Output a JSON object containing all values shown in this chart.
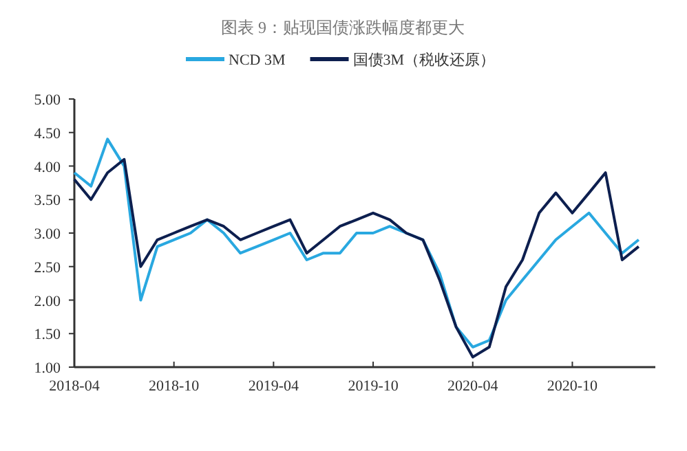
{
  "chart_data": {
    "type": "line",
    "title": "图表 9：贴现国债涨跌幅度都更大",
    "legend": "top",
    "grid": false,
    "xlim": [
      "2018-04",
      "2021-03"
    ],
    "xticks": [
      "2018-04",
      "2018-10",
      "2019-04",
      "2019-10",
      "2020-04",
      "2020-10"
    ],
    "ylim": [
      1,
      5
    ],
    "yticks": [
      {
        "value": 1,
        "label": "1.00"
      },
      {
        "value": 1.5,
        "label": "1.50"
      },
      {
        "value": 2,
        "label": "2.00"
      },
      {
        "value": 2.5,
        "label": "2.50"
      },
      {
        "value": 3,
        "label": "3.00"
      },
      {
        "value": 3.5,
        "label": "3.50"
      },
      {
        "value": 4,
        "label": "4.00"
      },
      {
        "value": 4.5,
        "label": "4.50"
      },
      {
        "value": 5,
        "label": "5.00"
      }
    ],
    "x": [
      "2018-04",
      "2018-05",
      "2018-06",
      "2018-07",
      "2018-08",
      "2018-09",
      "2018-10",
      "2018-11",
      "2018-12",
      "2019-01",
      "2019-02",
      "2019-03",
      "2019-04",
      "2019-05",
      "2019-06",
      "2019-07",
      "2019-08",
      "2019-09",
      "2019-10",
      "2019-11",
      "2019-12",
      "2020-01",
      "2020-02",
      "2020-03",
      "2020-04",
      "2020-05",
      "2020-06",
      "2020-07",
      "2020-08",
      "2020-09",
      "2020-10",
      "2020-11",
      "2020-12",
      "2021-01",
      "2021-02"
    ],
    "series": [
      {
        "name": "NCD 3M",
        "color": "#29a8e0",
        "values": [
          3.9,
          3.7,
          4.4,
          4.0,
          2.0,
          2.8,
          2.9,
          3.0,
          3.2,
          3.0,
          2.7,
          2.8,
          2.9,
          3.0,
          2.6,
          2.7,
          2.7,
          3.0,
          3.0,
          3.1,
          3.0,
          2.9,
          2.4,
          1.6,
          1.3,
          1.4,
          2.0,
          2.3,
          2.6,
          2.9,
          3.1,
          3.3,
          3.0,
          2.7,
          2.9
        ]
      },
      {
        "name": "国债3M（税收还原）",
        "color": "#0d1f4f",
        "values": [
          3.8,
          3.5,
          3.9,
          4.1,
          2.5,
          2.9,
          3.0,
          3.1,
          3.2,
          3.1,
          2.9,
          3.0,
          3.1,
          3.2,
          2.7,
          2.9,
          3.1,
          3.2,
          3.3,
          3.2,
          3.0,
          2.9,
          2.3,
          1.6,
          1.15,
          1.3,
          2.2,
          2.6,
          3.3,
          3.6,
          3.3,
          3.6,
          3.9,
          2.6,
          2.8
        ]
      }
    ]
  }
}
